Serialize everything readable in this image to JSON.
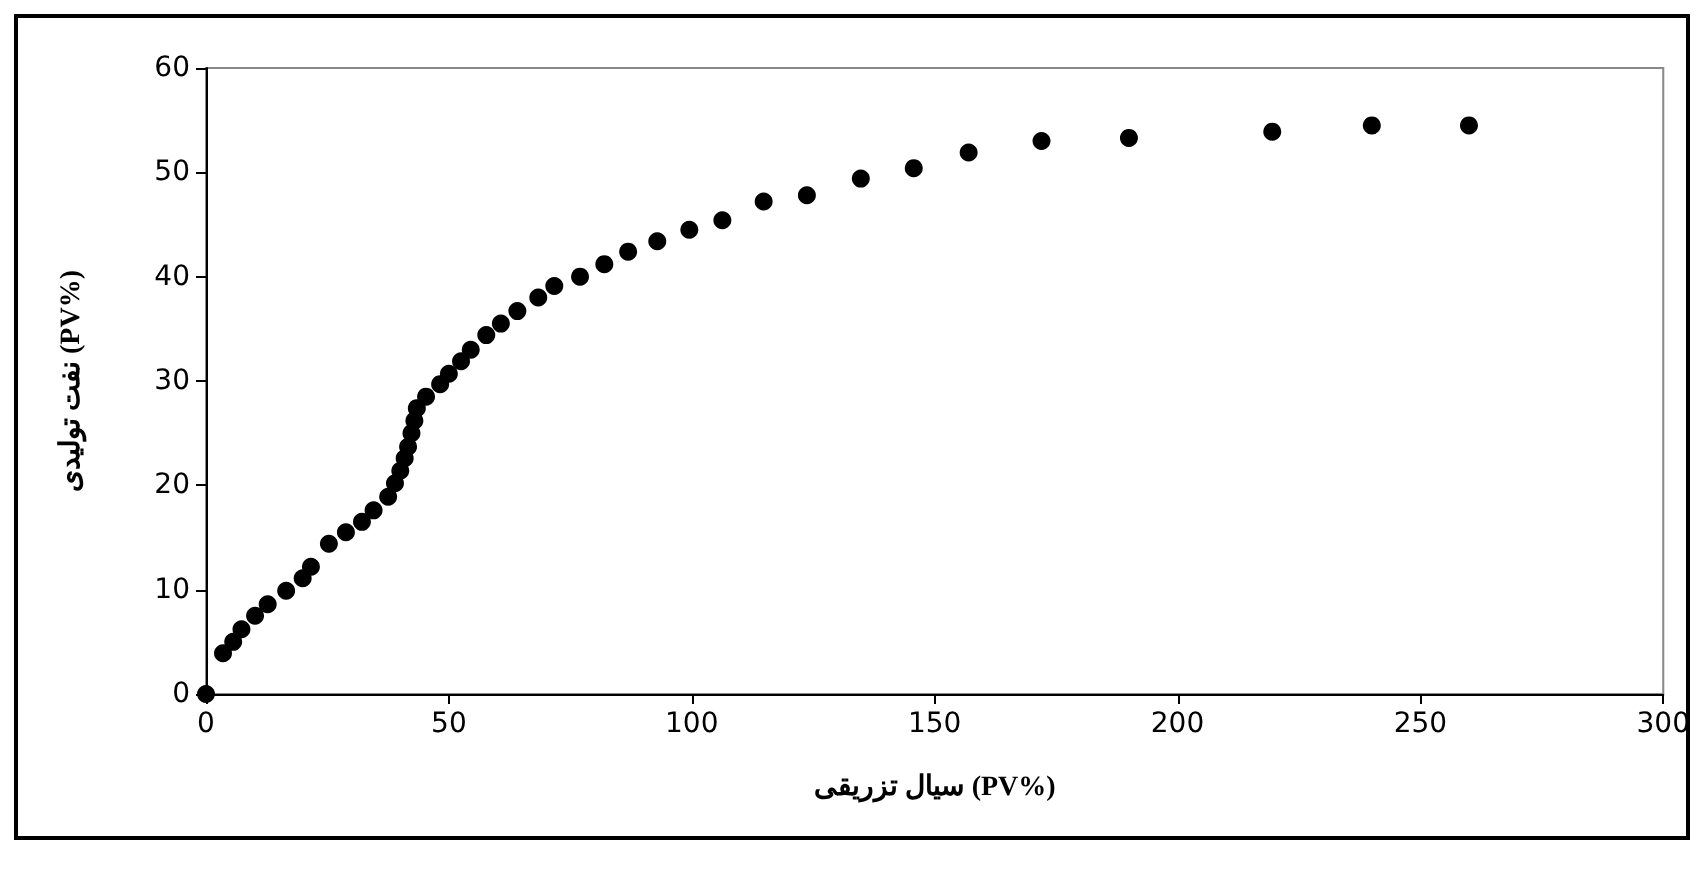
{
  "chart_data": {
    "type": "scatter",
    "xlabel": "سیال تزریقی (PV%)",
    "ylabel": "نفت تولیدی (PV%)",
    "x": [
      0,
      3.5,
      5.6,
      7.3,
      10.1,
      12.7,
      16.5,
      19.9,
      21.6,
      25.3,
      28.8,
      32.1,
      34.5,
      37.5,
      38.9,
      40,
      40.9,
      41.6,
      42.3,
      42.9,
      43.4,
      45.3,
      48.2,
      50,
      52.5,
      54.5,
      57.7,
      60.7,
      64.1,
      68.4,
      71.7,
      77,
      82,
      86.9,
      92.9,
      99.5,
      106.3,
      114.8,
      123.7,
      134.8,
      145.7,
      157,
      172,
      190,
      219.5,
      240,
      260
    ],
    "series": [
      {
        "color": "#000000",
        "values": [
          0,
          3.9,
          5.0,
          6.2,
          7.5,
          8.6,
          9.9,
          11.1,
          12.2,
          14.4,
          15.5,
          16.5,
          17.6,
          18.9,
          20.2,
          21.4,
          22.6,
          23.7,
          25,
          26.2,
          27.4,
          28.5,
          29.7,
          30.7,
          31.9,
          33,
          34.4,
          35.5,
          36.7,
          38,
          39.1,
          40,
          41.2,
          42.4,
          43.4,
          44.5,
          45.4,
          47.2,
          47.8,
          49.4,
          50.4,
          51.9,
          53,
          53.3,
          53.9,
          54.5,
          54.5
        ]
      }
    ],
    "xlim": [
      0,
      300
    ],
    "xticks": [
      0,
      50,
      100,
      150,
      200,
      250,
      300
    ],
    "ylim": [
      0,
      60
    ],
    "yticks": [
      0,
      10,
      20,
      30,
      40,
      50,
      60
    ],
    "marker": "circle",
    "grid": false
  }
}
